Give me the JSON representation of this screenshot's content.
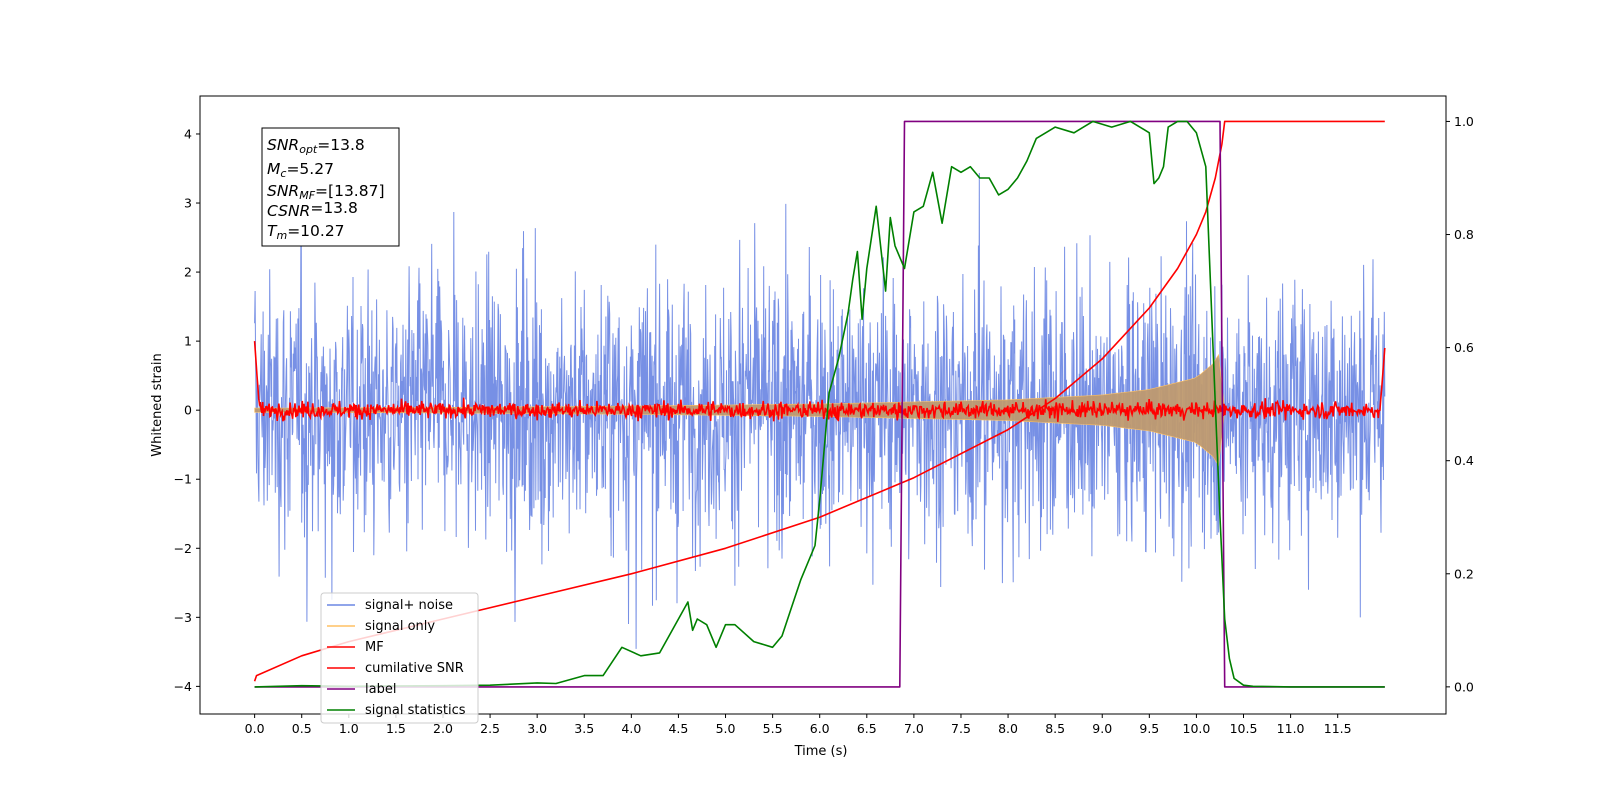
{
  "chart_data": {
    "type": "line",
    "xlabel": "Time (s)",
    "ylabel": "Whitened strain",
    "xlim": [
      -0.58,
      12.65
    ],
    "ylim": [
      -4.4,
      4.55
    ],
    "y2lim": [
      -0.048,
      1.045
    ],
    "xticks": [
      0.0,
      0.5,
      1.0,
      1.5,
      2.0,
      2.5,
      3.0,
      3.5,
      4.0,
      4.5,
      5.0,
      5.5,
      6.0,
      6.5,
      7.0,
      7.5,
      8.0,
      8.5,
      9.0,
      9.5,
      10.0,
      10.5,
      11.0,
      11.5
    ],
    "xtick_labels": [
      "0.0",
      "0.5",
      "1.0",
      "1.5",
      "2.0",
      "2.5",
      "3.0",
      "3.5",
      "4.0",
      "4.5",
      "5.0",
      "5.5",
      "6.0",
      "6.5",
      "7.0",
      "7.5",
      "8.0",
      "8.5",
      "9.0",
      "9.5",
      "10.0",
      "10.5",
      "11.0",
      "11.5"
    ],
    "yticks": [
      -4,
      -3,
      -2,
      -1,
      0,
      1,
      2,
      3,
      4
    ],
    "ytick_labels": [
      "−4",
      "−3",
      "−2",
      "−1",
      "0",
      "1",
      "2",
      "3",
      "4"
    ],
    "y2ticks": [
      0.0,
      0.2,
      0.4,
      0.6,
      0.8,
      1.0
    ],
    "y2tick_labels": [
      "0.0",
      "0.2",
      "0.4",
      "0.6",
      "0.8",
      "1.0"
    ],
    "legend_position": "lower-left",
    "legend": [
      {
        "label": "signal+ noise",
        "color": "#6b87e3"
      },
      {
        "label": "signal only",
        "color": "#ffc163"
      },
      {
        "label": "MF",
        "color": "#ff0000"
      },
      {
        "label": "cumilative SNR",
        "color": "#ff0000"
      },
      {
        "label": "label",
        "color": "#800080"
      },
      {
        "label": "signal statistics",
        "color": "#008000"
      }
    ],
    "annotation": {
      "lines": [
        {
          "sym": "SNR",
          "sub": "opt",
          "value": "=13.8"
        },
        {
          "sym": "M",
          "sub": "c",
          "value": "=5.27"
        },
        {
          "sym": "SNR",
          "sub": "MF",
          "value": "=[13.87]"
        },
        {
          "sym": "CSNR",
          "sub": "",
          "value": "=13.8"
        },
        {
          "sym": "T",
          "sub": "m",
          "value": "=10.27"
        }
      ]
    },
    "series": [
      {
        "name": "signal+ noise",
        "axis": "left",
        "color": "#6b87e3",
        "x_start": 0.0,
        "x_end": 12.0,
        "spread": 0.95,
        "peak_max": 4.2,
        "peak_min": -4.0
      },
      {
        "name": "signal only",
        "axis": "left",
        "color": "#ffc163",
        "x_start": 0.0,
        "x_end": 10.3,
        "envelope": {
          "x": [
            0,
            2,
            4,
            6,
            8,
            9,
            9.5,
            10,
            10.2,
            10.27,
            10.3
          ],
          "y": [
            0.03,
            0.04,
            0.06,
            0.09,
            0.15,
            0.22,
            0.3,
            0.47,
            0.7,
            0.9,
            0.0
          ]
        }
      },
      {
        "name": "MF",
        "axis": "left",
        "color": "#ff0000",
        "x_start": 0.0,
        "x_end": 12.0,
        "spread": 0.06,
        "edge_start": 1.0,
        "edge_end": 0.9
      },
      {
        "name": "cumilative SNR",
        "axis": "right",
        "color": "#ff0000",
        "x": [
          0.0,
          0.02,
          0.5,
          1.0,
          2.0,
          3.0,
          4.0,
          5.0,
          6.0,
          7.0,
          8.0,
          8.5,
          9.0,
          9.5,
          9.8,
          10.0,
          10.1,
          10.2,
          10.27,
          10.3,
          12.0
        ],
        "y": [
          0.01,
          0.02,
          0.055,
          0.08,
          0.12,
          0.16,
          0.2,
          0.245,
          0.3,
          0.37,
          0.455,
          0.51,
          0.58,
          0.67,
          0.74,
          0.8,
          0.84,
          0.9,
          0.96,
          1.0,
          1.0
        ]
      },
      {
        "name": "label",
        "axis": "right",
        "color": "#800080",
        "x": [
          0.0,
          6.85,
          6.9,
          10.25,
          10.3,
          12.0
        ],
        "y": [
          0.0,
          0.0,
          1.0,
          1.0,
          0.0,
          0.0
        ]
      },
      {
        "name": "signal statistics",
        "axis": "right",
        "color": "#008000",
        "x": [
          0.0,
          0.5,
          1.0,
          2.0,
          2.5,
          3.0,
          3.2,
          3.5,
          3.7,
          3.9,
          4.1,
          4.3,
          4.4,
          4.6,
          4.65,
          4.7,
          4.8,
          4.9,
          5.0,
          5.1,
          5.3,
          5.5,
          5.6,
          5.7,
          5.8,
          5.95,
          6.0,
          6.1,
          6.2,
          6.3,
          6.35,
          6.4,
          6.45,
          6.5,
          6.6,
          6.7,
          6.75,
          6.8,
          6.9,
          7.0,
          7.1,
          7.2,
          7.3,
          7.4,
          7.5,
          7.6,
          7.7,
          7.8,
          7.9,
          8.0,
          8.1,
          8.2,
          8.3,
          8.4,
          8.5,
          8.7,
          8.9,
          9.1,
          9.3,
          9.5,
          9.55,
          9.6,
          9.65,
          9.7,
          9.8,
          9.9,
          10.0,
          10.1,
          10.2,
          10.25,
          10.3,
          10.35,
          10.4,
          10.5,
          10.6,
          11.0,
          12.0
        ],
        "y": [
          0.0,
          0.002,
          0.001,
          0.002,
          0.003,
          0.007,
          0.006,
          0.02,
          0.02,
          0.07,
          0.055,
          0.06,
          0.09,
          0.15,
          0.1,
          0.12,
          0.11,
          0.07,
          0.11,
          0.11,
          0.08,
          0.07,
          0.09,
          0.14,
          0.19,
          0.25,
          0.33,
          0.52,
          0.58,
          0.66,
          0.72,
          0.77,
          0.65,
          0.74,
          0.85,
          0.7,
          0.83,
          0.78,
          0.74,
          0.84,
          0.85,
          0.91,
          0.82,
          0.92,
          0.91,
          0.92,
          0.9,
          0.9,
          0.87,
          0.88,
          0.9,
          0.93,
          0.97,
          0.98,
          0.99,
          0.98,
          1.0,
          0.99,
          1.0,
          0.98,
          0.89,
          0.9,
          0.92,
          0.99,
          1.0,
          1.0,
          0.98,
          0.92,
          0.5,
          0.3,
          0.12,
          0.05,
          0.015,
          0.003,
          0.001,
          0.0,
          0.0
        ]
      }
    ]
  }
}
